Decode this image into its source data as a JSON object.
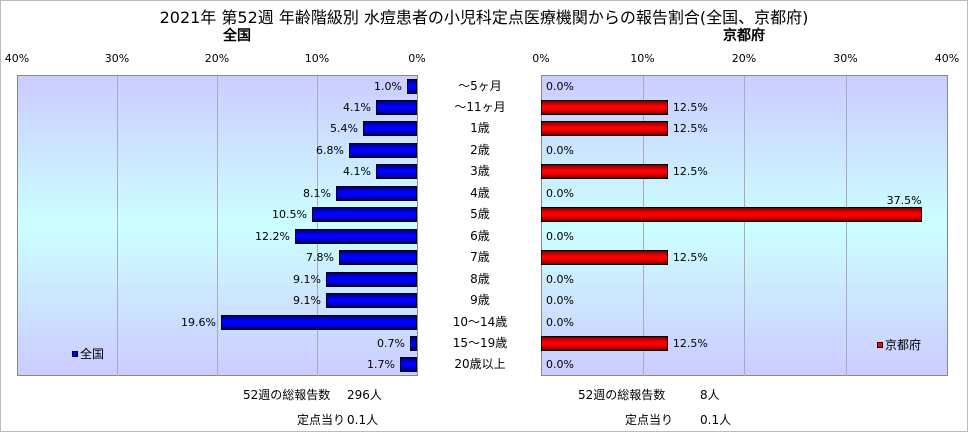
{
  "title": "2021年 第52週 年齢階級別 水痘患者の小児科定点医療機関からの報告割合(全国、京都府)",
  "chart_data": {
    "type": "bar",
    "categories": [
      "～5ヶ月",
      "～11ヶ月",
      "1歳",
      "2歳",
      "3歳",
      "4歳",
      "5歳",
      "6歳",
      "7歳",
      "8歳",
      "9歳",
      "10～14歳",
      "15～19歳",
      "20歳以上"
    ],
    "series": [
      {
        "name": "全国",
        "title": "全国",
        "color": "#0000ff",
        "values": [
          1.0,
          4.1,
          5.4,
          6.8,
          4.1,
          8.1,
          10.5,
          12.2,
          7.8,
          9.1,
          9.1,
          19.6,
          0.7,
          1.7
        ],
        "labels": [
          "1.0%",
          "4.1%",
          "5.4%",
          "6.8%",
          "4.1%",
          "8.1%",
          "10.5%",
          "12.2%",
          "7.8%",
          "9.1%",
          "9.1%",
          "19.6%",
          "0.7%",
          "1.7%"
        ]
      },
      {
        "name": "京都府",
        "title": "京都府",
        "color": "#ff0000",
        "values": [
          0,
          12.5,
          12.5,
          0,
          12.5,
          0,
          37.5,
          0,
          12.5,
          0,
          0,
          0,
          12.5,
          0
        ],
        "labels": [
          "0.0%",
          "12.5%",
          "12.5%",
          "0.0%",
          "12.5%",
          "0.0%",
          "37.5%",
          "0.0%",
          "12.5%",
          "0.0%",
          "0.0%",
          "0.0%",
          "12.5%",
          "0.0%"
        ]
      }
    ],
    "xlim": [
      0,
      40
    ],
    "ticks": [
      "0%",
      "10%",
      "20%",
      "30%",
      "40%"
    ],
    "grid": true
  },
  "footer": {
    "left": {
      "total_label": "52週の総報告数",
      "total_value": "296人",
      "per_label": "定点当り",
      "per_value": "0.1人"
    },
    "right": {
      "total_label": "52週の総報告数",
      "total_value": "8人",
      "per_label": "定点当り",
      "per_value": "0.1人"
    }
  }
}
